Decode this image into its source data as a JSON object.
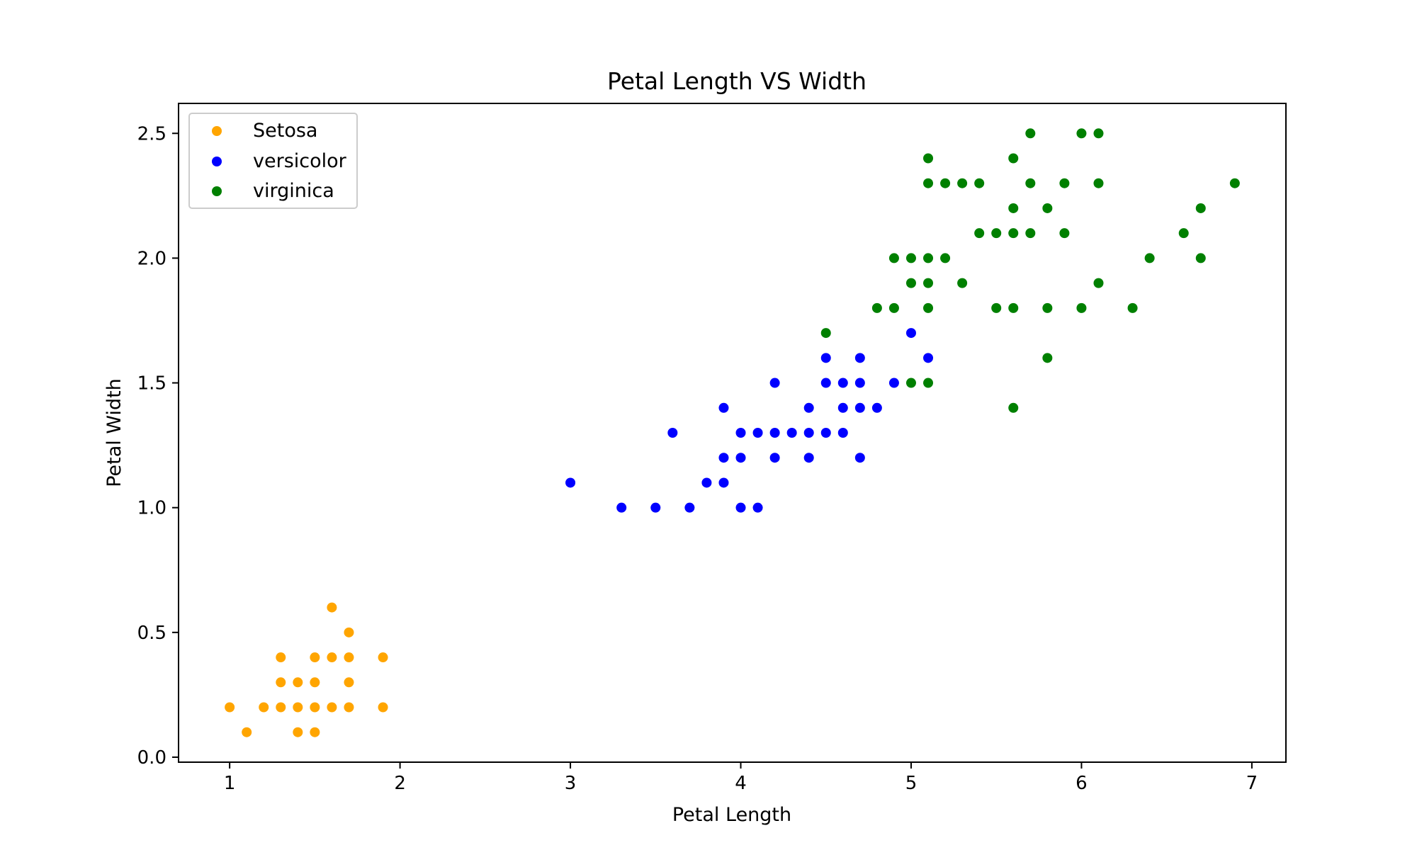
{
  "chart_data": {
    "type": "scatter",
    "title": "Petal Length VS Width",
    "xlabel": "Petal Length",
    "ylabel": "Petal Width",
    "xlim": [
      0.7,
      7.2
    ],
    "ylim": [
      -0.02,
      2.62
    ],
    "xticks": [
      1,
      2,
      3,
      4,
      5,
      6,
      7
    ],
    "xtick_labels": [
      "1",
      "2",
      "3",
      "4",
      "5",
      "6",
      "7"
    ],
    "yticks": [
      0.0,
      0.5,
      1.0,
      1.5,
      2.0,
      2.5
    ],
    "ytick_labels": [
      "0.0",
      "0.5",
      "1.0",
      "1.5",
      "2.0",
      "2.5"
    ],
    "grid": false,
    "legend_position": "top-left",
    "series": [
      {
        "name": "Setosa",
        "color": "#ffa500",
        "points": [
          [
            1.0,
            0.2
          ],
          [
            1.1,
            0.1
          ],
          [
            1.2,
            0.2
          ],
          [
            1.3,
            0.2
          ],
          [
            1.3,
            0.3
          ],
          [
            1.3,
            0.4
          ],
          [
            1.4,
            0.1
          ],
          [
            1.4,
            0.2
          ],
          [
            1.4,
            0.3
          ],
          [
            1.5,
            0.1
          ],
          [
            1.5,
            0.2
          ],
          [
            1.5,
            0.3
          ],
          [
            1.5,
            0.4
          ],
          [
            1.6,
            0.2
          ],
          [
            1.6,
            0.4
          ],
          [
            1.6,
            0.6
          ],
          [
            1.7,
            0.2
          ],
          [
            1.7,
            0.3
          ],
          [
            1.7,
            0.4
          ],
          [
            1.7,
            0.5
          ],
          [
            1.9,
            0.2
          ],
          [
            1.9,
            0.4
          ]
        ]
      },
      {
        "name": "versicolor",
        "color": "#0000ff",
        "points": [
          [
            3.0,
            1.1
          ],
          [
            3.3,
            1.0
          ],
          [
            3.5,
            1.0
          ],
          [
            3.6,
            1.3
          ],
          [
            3.7,
            1.0
          ],
          [
            3.8,
            1.1
          ],
          [
            3.9,
            1.1
          ],
          [
            3.9,
            1.2
          ],
          [
            3.9,
            1.4
          ],
          [
            4.0,
            1.0
          ],
          [
            4.0,
            1.2
          ],
          [
            4.0,
            1.3
          ],
          [
            4.1,
            1.0
          ],
          [
            4.1,
            1.3
          ],
          [
            4.2,
            1.2
          ],
          [
            4.2,
            1.3
          ],
          [
            4.2,
            1.5
          ],
          [
            4.3,
            1.3
          ],
          [
            4.4,
            1.2
          ],
          [
            4.4,
            1.3
          ],
          [
            4.4,
            1.4
          ],
          [
            4.5,
            1.3
          ],
          [
            4.5,
            1.5
          ],
          [
            4.5,
            1.6
          ],
          [
            4.6,
            1.3
          ],
          [
            4.6,
            1.4
          ],
          [
            4.6,
            1.5
          ],
          [
            4.7,
            1.2
          ],
          [
            4.7,
            1.4
          ],
          [
            4.7,
            1.5
          ],
          [
            4.7,
            1.6
          ],
          [
            4.8,
            1.4
          ],
          [
            4.9,
            1.5
          ],
          [
            5.0,
            1.7
          ],
          [
            5.1,
            1.6
          ]
        ]
      },
      {
        "name": "virginica",
        "color": "#008000",
        "points": [
          [
            4.5,
            1.7
          ],
          [
            4.8,
            1.8
          ],
          [
            4.9,
            1.8
          ],
          [
            4.9,
            2.0
          ],
          [
            5.0,
            1.5
          ],
          [
            5.0,
            1.9
          ],
          [
            5.0,
            2.0
          ],
          [
            5.1,
            1.5
          ],
          [
            5.1,
            1.8
          ],
          [
            5.1,
            1.9
          ],
          [
            5.1,
            2.0
          ],
          [
            5.1,
            2.3
          ],
          [
            5.1,
            2.4
          ],
          [
            5.2,
            2.0
          ],
          [
            5.2,
            2.3
          ],
          [
            5.3,
            1.9
          ],
          [
            5.3,
            2.3
          ],
          [
            5.4,
            2.1
          ],
          [
            5.4,
            2.3
          ],
          [
            5.5,
            1.8
          ],
          [
            5.5,
            2.1
          ],
          [
            5.6,
            1.4
          ],
          [
            5.6,
            1.8
          ],
          [
            5.6,
            2.1
          ],
          [
            5.6,
            2.2
          ],
          [
            5.6,
            2.4
          ],
          [
            5.7,
            2.1
          ],
          [
            5.7,
            2.3
          ],
          [
            5.7,
            2.5
          ],
          [
            5.8,
            1.6
          ],
          [
            5.8,
            1.8
          ],
          [
            5.8,
            2.2
          ],
          [
            5.9,
            2.1
          ],
          [
            5.9,
            2.3
          ],
          [
            6.0,
            1.8
          ],
          [
            6.0,
            2.5
          ],
          [
            6.1,
            1.9
          ],
          [
            6.1,
            2.3
          ],
          [
            6.1,
            2.5
          ],
          [
            6.3,
            1.8
          ],
          [
            6.4,
            2.0
          ],
          [
            6.6,
            2.1
          ],
          [
            6.7,
            2.0
          ],
          [
            6.7,
            2.2
          ],
          [
            6.9,
            2.3
          ]
        ]
      }
    ]
  }
}
